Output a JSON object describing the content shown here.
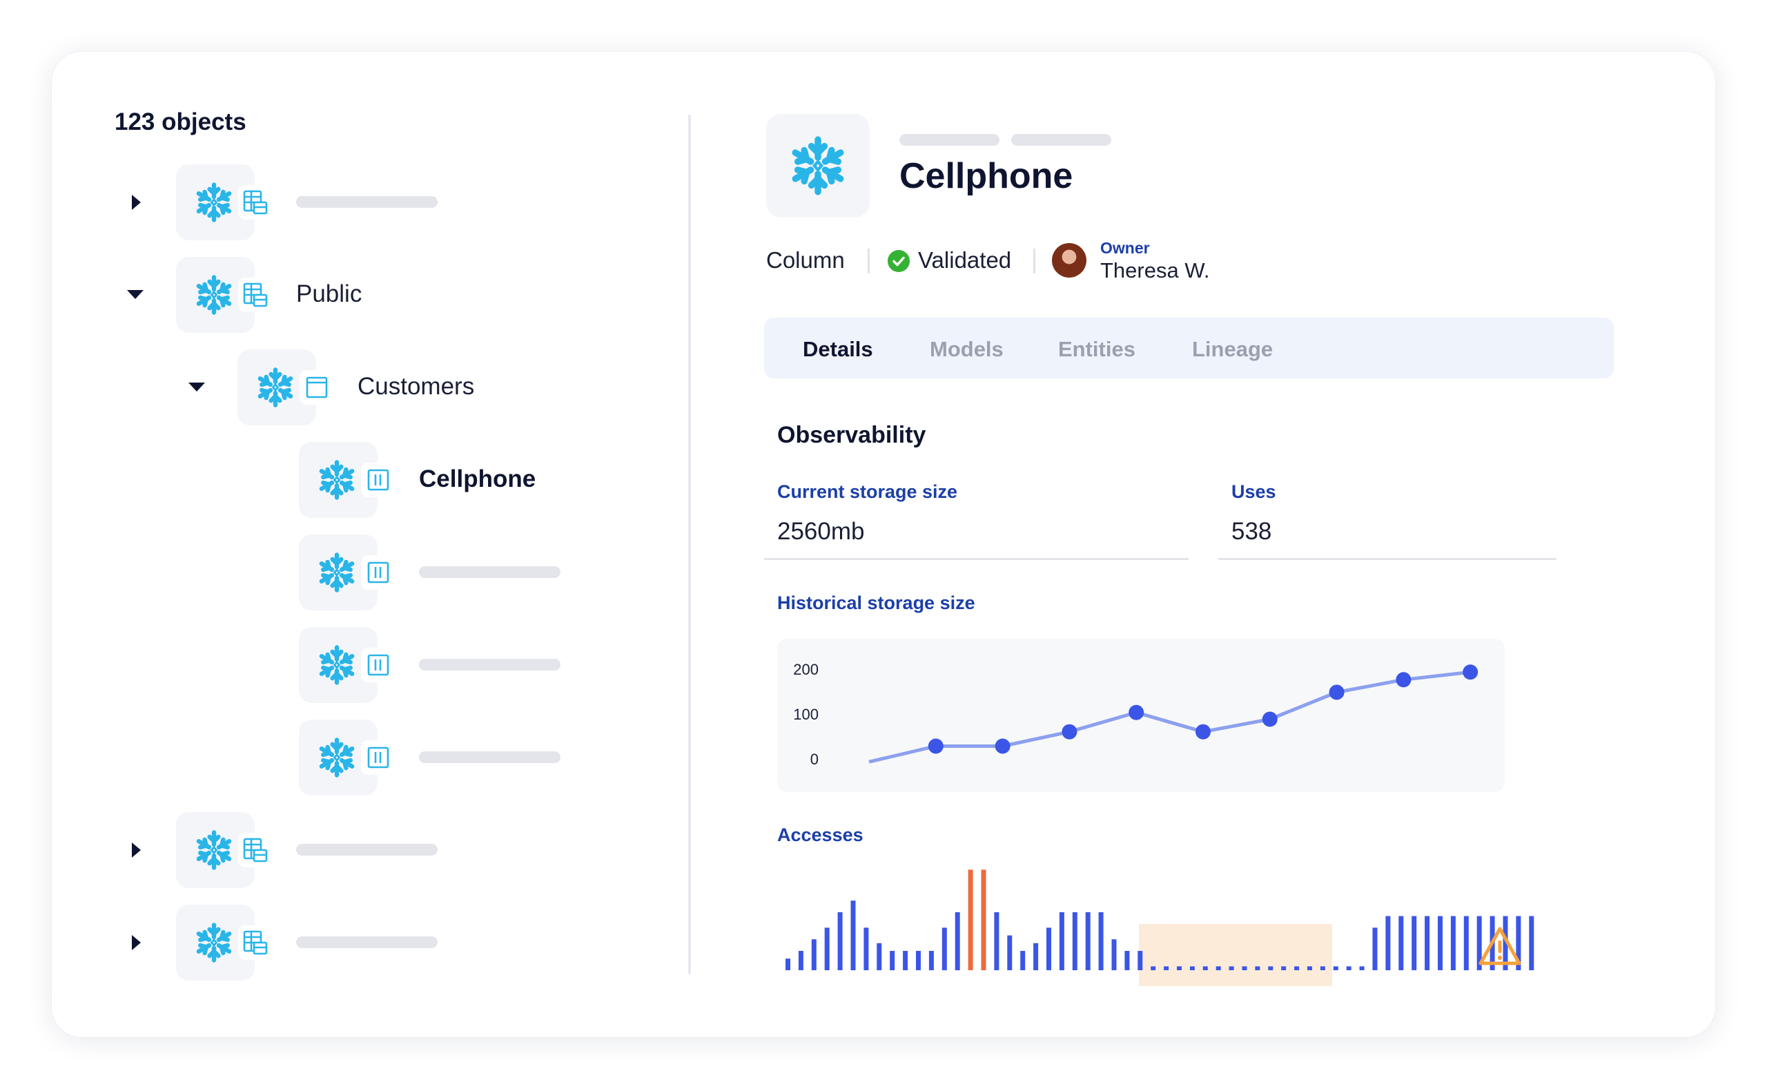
{
  "tree": {
    "count_label": "123 objects",
    "items": [
      {
        "label": "",
        "icon": "table-icon",
        "expanded": false
      },
      {
        "label": "Public",
        "icon": "table-icon",
        "expanded": true
      },
      {
        "label": "Customers",
        "icon": "view-icon",
        "expanded": true
      },
      {
        "label": "Cellphone",
        "icon": "column-icon",
        "selected": true
      },
      {
        "label": "",
        "icon": "column-icon"
      },
      {
        "label": "",
        "icon": "column-icon"
      },
      {
        "label": "",
        "icon": "column-icon"
      },
      {
        "label": "",
        "icon": "table-icon",
        "expanded": false
      },
      {
        "label": "",
        "icon": "table-icon",
        "expanded": false
      }
    ]
  },
  "detail": {
    "title": "Cellphone",
    "type": "Column",
    "status": "Validated",
    "owner_label": "Owner",
    "owner_name": "Theresa W."
  },
  "tabs": [
    {
      "label": "Details",
      "active": true
    },
    {
      "label": "Models",
      "active": false
    },
    {
      "label": "Entities",
      "active": false
    },
    {
      "label": "Lineage",
      "active": false
    }
  ],
  "observability": {
    "title": "Observability",
    "storage_label": "Current storage size",
    "storage_value": "2560mb",
    "uses_label": "Uses",
    "uses_value": "538",
    "history_label": "Historical storage size",
    "accesses_label": "Accesses"
  },
  "colors": {
    "snowflake": "#29b5e8",
    "accent_blue": "#3b55e6",
    "line": "#8ca0ee",
    "alert_orange": "#ee6a3c",
    "warning": "#f4a23c",
    "label_blue": "#1c3fa8"
  },
  "chart_data": [
    {
      "type": "line",
      "title": "Historical storage size",
      "y_ticks": [
        "200",
        "100",
        "0"
      ],
      "ylim": [
        0,
        200
      ],
      "x": [
        0,
        1,
        2,
        3,
        4,
        5,
        6,
        7,
        8,
        9
      ],
      "values": [
        -5,
        30,
        30,
        62,
        105,
        62,
        90,
        150,
        178,
        195
      ],
      "markers_from_index": 1
    },
    {
      "type": "bar",
      "title": "Accesses",
      "values": [
        3,
        5,
        8,
        11,
        15,
        18,
        11,
        7,
        5,
        5,
        5,
        5,
        11,
        15,
        26,
        26,
        15,
        9,
        5,
        7,
        11,
        15,
        15,
        15,
        15,
        8,
        5,
        5,
        1,
        1,
        1,
        1,
        1,
        1,
        1,
        1,
        1,
        1,
        1,
        1,
        1,
        1,
        1,
        1,
        1,
        11,
        14,
        14,
        14,
        14,
        14,
        14,
        14,
        14,
        14,
        14,
        14,
        14
      ],
      "alert_indices": [
        14,
        15
      ],
      "anomaly_range": [
        28,
        44
      ],
      "warning_icon": "warning-icon"
    }
  ]
}
